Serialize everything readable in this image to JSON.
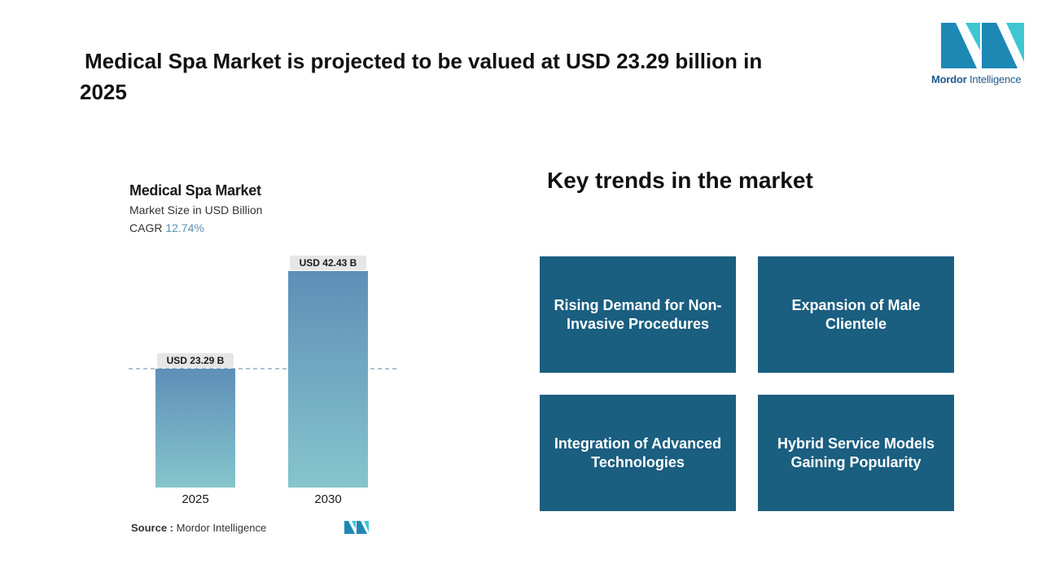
{
  "headline": {
    "line1": "Medical Spa Market is projected to be valued at USD 23.29 billion in",
    "line2": "2025"
  },
  "logo": {
    "brand_bold": "Mordor",
    "brand_regular": " Intelligence"
  },
  "chart_data": {
    "type": "bar",
    "title": "Medical Spa Market",
    "subtitle": "Market Size in USD Billion",
    "cagr_label": "CAGR",
    "cagr_value": "12.74%",
    "categories": [
      "2025",
      "2030"
    ],
    "values": [
      23.29,
      42.43
    ],
    "data_labels": [
      "USD 23.29 B",
      "USD 42.43 B"
    ],
    "ylim": [
      0,
      42.43
    ],
    "reference_line": 23.29,
    "colors": {
      "bar_top": "#5e8fb8",
      "bar_bottom": "#86c5cc",
      "label_bg": "#e6e6e6",
      "ref_line": "#7d9db5"
    }
  },
  "source": {
    "label": "Source :",
    "value": "Mordor Intelligence"
  },
  "trends": {
    "title": "Key trends in the market",
    "items": [
      "Rising Demand for Non-Invasive Procedures",
      "Expansion of Male Clientele",
      "Integration of Advanced Technologies",
      "Hybrid Service Models Gaining Popularity"
    ],
    "box_color": "#1a5e80"
  }
}
